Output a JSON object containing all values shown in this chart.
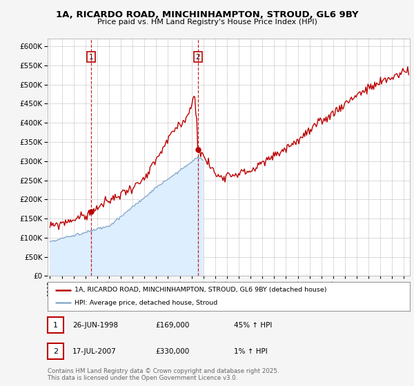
{
  "title_line1": "1A, RICARDO ROAD, MINCHINHAMPTON, STROUD, GL6 9BY",
  "title_line2": "Price paid vs. HM Land Registry's House Price Index (HPI)",
  "ylim": [
    0,
    620000
  ],
  "yticks": [
    0,
    50000,
    100000,
    150000,
    200000,
    250000,
    300000,
    350000,
    400000,
    450000,
    500000,
    550000,
    600000
  ],
  "xlim_start": 1994.8,
  "xlim_end": 2025.5,
  "line1_color": "#bb0000",
  "line2_color": "#88aacc",
  "line2_fill_color": "#ddeeff",
  "vline1_x": 1998.48,
  "vline2_x": 2007.54,
  "marker1_x": 1998.48,
  "marker1_y": 169000,
  "marker2_x": 2007.54,
  "marker2_y": 330000,
  "hpi_end_x": 2008.0,
  "legend_label1": "1A, RICARDO ROAD, MINCHINHAMPTON, STROUD, GL6 9BY (detached house)",
  "legend_label2": "HPI: Average price, detached house, Stroud",
  "table_rows": [
    {
      "num": "1",
      "date": "26-JUN-1998",
      "price": "£169,000",
      "hpi": "45% ↑ HPI"
    },
    {
      "num": "2",
      "date": "17-JUL-2007",
      "price": "£330,000",
      "hpi": "1% ↑ HPI"
    }
  ],
  "footer": "Contains HM Land Registry data © Crown copyright and database right 2025.\nThis data is licensed under the Open Government Licence v3.0.",
  "bg_color": "#f5f5f5",
  "plot_bg_color": "#ffffff"
}
